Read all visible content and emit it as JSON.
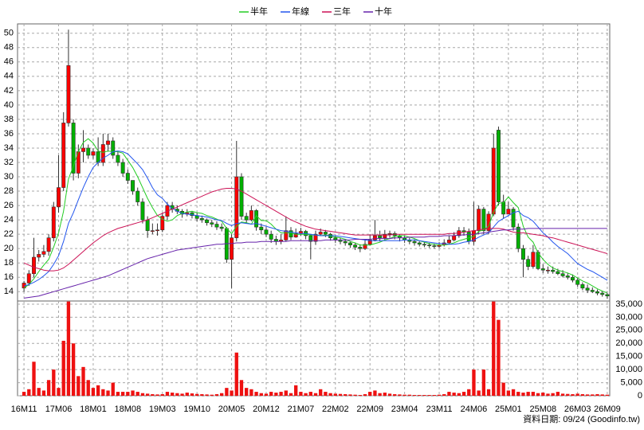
{
  "chart_data": {
    "type": "candlestick",
    "legend": "top",
    "grid": true,
    "up_color": "#ff0000",
    "down_color": "#00b000",
    "source_note": "資料日期: 09/24  (Goodinfo.tw)",
    "categories": [
      "16M11",
      null,
      null,
      null,
      null,
      null,
      null,
      "17M06",
      null,
      null,
      null,
      null,
      null,
      null,
      "18M01",
      null,
      null,
      null,
      null,
      null,
      null,
      "18M08",
      null,
      null,
      null,
      null,
      null,
      null,
      "19M03",
      null,
      null,
      null,
      null,
      null,
      null,
      "19M10",
      null,
      null,
      null,
      null,
      null,
      null,
      "20M05",
      null,
      null,
      null,
      null,
      null,
      null,
      "20M12",
      null,
      null,
      null,
      null,
      null,
      null,
      "21M07",
      null,
      null,
      null,
      null,
      null,
      null,
      "22M02",
      null,
      null,
      null,
      null,
      null,
      null,
      "22M09",
      null,
      null,
      null,
      null,
      null,
      null,
      "23M04",
      null,
      null,
      null,
      null,
      null,
      null,
      "23M11",
      null,
      null,
      null,
      null,
      null,
      null,
      "24M06",
      null,
      null,
      null,
      null,
      null,
      null,
      "25M01",
      null,
      null,
      null,
      null,
      null,
      null,
      "25M08",
      null,
      null,
      null,
      null,
      null,
      null,
      "26M03",
      null,
      null,
      null,
      null,
      null,
      "26M09"
    ],
    "open": [
      14.5,
      15.2,
      16.5,
      18.8,
      19.2,
      19.6,
      21.5,
      25.8,
      28.5,
      37.5,
      37.5,
      30.5,
      33.5,
      34,
      33,
      33.5,
      32,
      34.5,
      35,
      33,
      32,
      30.5,
      29.5,
      28,
      26.5,
      24,
      22.5,
      22.5,
      22.6,
      24.5,
      26,
      25.5,
      25.2,
      24.8,
      25,
      24.6,
      24.2,
      24,
      23.6,
      23.4,
      23,
      22.8,
      18.5,
      21.5,
      30,
      24.5,
      24,
      25.3,
      23,
      22.6,
      22,
      21.3,
      21,
      21.2,
      22.5,
      21.6,
      22.1,
      22.4,
      21.8,
      21,
      22,
      22.3,
      22,
      21.5,
      21.2,
      21,
      20.8,
      20.5,
      20.2,
      20,
      20.6,
      21.2,
      21.8,
      21.5,
      22,
      22.1,
      21.8,
      21.5,
      21.2,
      21,
      20.8,
      20.6,
      20.5,
      20.4,
      20.3,
      20.5,
      20.8,
      21.2,
      21.8,
      22.5,
      22.3,
      21,
      22.5,
      25.5,
      22.5,
      24.8,
      36.5,
      26.5,
      24.8,
      25.5,
      23,
      20,
      18.5,
      17.5,
      19.5,
      17.2,
      17,
      17,
      16.8,
      16.5,
      16.2,
      16,
      15.6,
      15,
      14.5,
      14.2,
      14,
      13.8,
      13.6
    ],
    "high": [
      15.5,
      17,
      21.5,
      19.8,
      20.5,
      22,
      26.5,
      33,
      39,
      50.5,
      38,
      34.5,
      36.5,
      34.5,
      34,
      35.5,
      36,
      36,
      35.5,
      33.5,
      32.5,
      31,
      29.5,
      28.5,
      27,
      24.5,
      23.5,
      23.5,
      25,
      26.5,
      26.5,
      26,
      25.5,
      25.5,
      25.2,
      25,
      24.6,
      24.2,
      24,
      23.8,
      23.5,
      23,
      22,
      35,
      30.5,
      25,
      26,
      25.5,
      23.5,
      23,
      22.5,
      21.8,
      22,
      24.5,
      23,
      22.8,
      22.9,
      22.6,
      22,
      22.5,
      22.8,
      22.6,
      22.2,
      21.8,
      21.5,
      21.3,
      21,
      20.8,
      20.6,
      21.2,
      22,
      24,
      22.5,
      22.6,
      22.5,
      22.4,
      22,
      21.8,
      21.5,
      21.3,
      21,
      20.9,
      20.8,
      20.7,
      20.9,
      21.3,
      21.8,
      22.3,
      23,
      23,
      22.8,
      26.5,
      26,
      25.8,
      25.2,
      36,
      37,
      27.5,
      26.5,
      25.8,
      23.5,
      20.5,
      19,
      20.5,
      19.8,
      17.8,
      17.5,
      17.5,
      17.2,
      17,
      16.6,
      16.4,
      15.9,
      15.3,
      15,
      14.6,
      14.3,
      14,
      13.8
    ],
    "low": [
      14,
      14.8,
      16,
      18.2,
      18.8,
      19,
      21,
      25,
      28,
      37,
      29.5,
      29.8,
      32,
      32.5,
      32.5,
      31.5,
      31.5,
      33.5,
      32.5,
      31.5,
      30,
      29,
      27.5,
      26,
      23.5,
      21.5,
      22,
      21.8,
      22.3,
      24,
      25,
      24.8,
      24.3,
      24.5,
      24.2,
      23.8,
      23.6,
      23.2,
      23,
      22.6,
      22.4,
      18,
      14.5,
      21,
      24,
      23.5,
      23.8,
      22.5,
      22,
      21.6,
      20.8,
      20.5,
      20.6,
      21,
      21.2,
      21.5,
      21.8,
      21.3,
      18.5,
      20.5,
      21.8,
      21.6,
      21.1,
      20.8,
      20.6,
      20.4,
      20.1,
      19.8,
      19.5,
      19.8,
      20.5,
      21,
      21,
      21.2,
      21.5,
      21.3,
      21,
      20.8,
      20.6,
      20.4,
      20.3,
      20.2,
      20.1,
      20,
      20.1,
      20.3,
      20.6,
      21,
      21.5,
      21.8,
      20.6,
      20.5,
      22,
      22,
      22,
      24.5,
      26,
      24.2,
      24.8,
      22.5,
      19.5,
      16,
      17,
      17.2,
      17,
      16.6,
      16.5,
      16.5,
      16.3,
      16,
      15.7,
      15.3,
      14.7,
      14.2,
      13.8,
      13.8,
      13.5,
      13.3,
      13
    ],
    "close": [
      15.2,
      16.5,
      18.8,
      19.2,
      19.6,
      21.5,
      25.8,
      28.5,
      37.5,
      45.5,
      30.5,
      33.5,
      34,
      33,
      33.5,
      32,
      34.5,
      35,
      33,
      32,
      30.5,
      29.5,
      28,
      26.5,
      24,
      22.5,
      22.5,
      22.6,
      24.5,
      26,
      25.5,
      25.2,
      24.8,
      25,
      24.6,
      24.2,
      24,
      23.6,
      23.4,
      23,
      22.8,
      18.5,
      21.5,
      30,
      24.5,
      24,
      25.3,
      23,
      22.6,
      22,
      21.3,
      21,
      21.2,
      22.5,
      21.6,
      22.1,
      22.4,
      21.8,
      21,
      22,
      22.3,
      22,
      21.5,
      21.2,
      21,
      20.8,
      20.5,
      20.2,
      20,
      20.6,
      21.2,
      21.8,
      21.5,
      22,
      22.1,
      21.8,
      21.5,
      21.2,
      21,
      20.8,
      20.6,
      20.5,
      20.4,
      20.3,
      20.5,
      20.8,
      21.2,
      21.8,
      22.5,
      22.3,
      21,
      22.5,
      25.5,
      22.5,
      24.8,
      34,
      26.5,
      24.8,
      25.5,
      23,
      20,
      18.5,
      17.5,
      19.5,
      17.2,
      17,
      17,
      16.8,
      16.5,
      16.2,
      16,
      15.6,
      15,
      14.5,
      14.2,
      14,
      13.8,
      13.6,
      13.4
    ],
    "series": [
      {
        "name": "半年",
        "color": "#22cc22",
        "values": [
          14.5,
          15,
          15.8,
          16.8,
          17.7,
          18.5,
          20.2,
          22.2,
          25.2,
          29.7,
          31.5,
          33.5,
          34.8,
          35.3,
          34.7,
          33.6,
          33.4,
          33.6,
          33.5,
          33.5,
          33.3,
          32.3,
          31.3,
          30,
          28.5,
          27,
          25.7,
          24.6,
          24.1,
          23.8,
          24,
          24.6,
          24.9,
          25.1,
          25.2,
          25,
          24.9,
          24.6,
          24.4,
          24.1,
          23.8,
          22.8,
          22.1,
          23.1,
          23.7,
          23.6,
          23.4,
          24.6,
          23.9,
          23.9,
          23.4,
          22.7,
          22.2,
          22.2,
          22.2,
          22,
          22,
          22,
          21.9,
          21.9,
          21.8,
          21.9,
          21.8,
          21.6,
          21.5,
          21.3,
          21,
          20.8,
          20.5,
          20.5,
          20.5,
          20.7,
          20.9,
          21.2,
          21.4,
          21.7,
          21.8,
          21.8,
          21.6,
          21.4,
          21.1,
          20.9,
          20.7,
          20.6,
          20.5,
          20.5,
          20.6,
          20.8,
          21.1,
          21.3,
          21.5,
          21.7,
          22.4,
          22.6,
          23.1,
          25.1,
          26.3,
          26.4,
          27.2,
          26.4,
          25.7,
          23.1,
          21.6,
          20.9,
          19.4,
          18.5,
          17.8,
          17.3,
          17,
          16.8,
          16.6,
          16.3,
          15.9,
          15.5,
          15.2,
          14.8,
          14.4,
          14.1,
          13.8
        ]
      },
      {
        "name": "年線",
        "color": "#2255ee",
        "values": [
          14.8,
          15,
          15.3,
          15.7,
          16.2,
          16.8,
          17.8,
          19,
          21,
          23.5,
          25,
          26.8,
          28.5,
          30,
          31.3,
          32,
          32.6,
          33,
          33.5,
          33.6,
          33.5,
          33.2,
          32.5,
          31.8,
          31,
          29.8,
          28.5,
          27.5,
          27,
          26.2,
          25.6,
          25.2,
          24.9,
          24.8,
          24.7,
          24.6,
          24.5,
          24.4,
          24.2,
          24,
          23.9,
          23.5,
          23.2,
          23.5,
          23.6,
          23.5,
          23.4,
          23.5,
          23.3,
          23.1,
          22.9,
          22.7,
          22.5,
          22.4,
          22.3,
          22.2,
          22.1,
          22.1,
          22,
          21.9,
          21.8,
          21.8,
          21.8,
          21.8,
          21.7,
          21.6,
          21.5,
          21.4,
          21.3,
          21.2,
          21.1,
          21.1,
          21.1,
          21.1,
          21.1,
          21.1,
          21.1,
          21.2,
          21.2,
          21.2,
          21.1,
          21,
          20.9,
          20.8,
          20.7,
          20.7,
          20.6,
          20.6,
          20.7,
          20.9,
          21,
          21.2,
          21.6,
          21.9,
          22.2,
          23,
          23.8,
          24.2,
          24.6,
          25,
          25.2,
          24.6,
          24.3,
          23.8,
          23,
          22.2,
          21.6,
          20.9,
          20.3,
          19.8,
          19.3,
          18.6,
          17.9,
          17.5,
          17.1,
          16.8,
          16.4,
          16,
          15.6
        ]
      },
      {
        "name": "三年",
        "color": "#cc1155",
        "values": [
          18,
          17.7,
          17.4,
          17.2,
          17,
          16.9,
          16.9,
          17,
          17.3,
          17.8,
          18.4,
          19,
          19.6,
          20.2,
          20.8,
          21.3,
          21.8,
          22.2,
          22.5,
          22.8,
          23,
          23.2,
          23.4,
          23.6,
          23.8,
          24,
          24.3,
          24.6,
          24.9,
          25.2,
          25.5,
          25.8,
          26.1,
          26.4,
          26.7,
          27,
          27.3,
          27.6,
          27.9,
          28.1,
          28.3,
          28.4,
          28.4,
          28.3,
          28,
          27.6,
          27.2,
          26.8,
          26.4,
          26,
          25.6,
          25.2,
          24.8,
          24.4,
          24,
          23.7,
          23.4,
          23.1,
          22.9,
          22.7,
          22.6,
          22.5,
          22.4,
          22.3,
          22.2,
          22.1,
          22,
          21.9,
          21.9,
          21.9,
          21.9,
          21.9,
          21.9,
          21.9,
          21.9,
          22,
          22,
          22,
          22,
          22,
          22,
          22,
          22,
          22,
          22,
          22,
          22.1,
          22.1,
          22.2,
          22.3,
          22.4,
          22.5,
          22.6,
          22.7,
          22.8,
          22.8,
          22.8,
          22.7,
          22.5,
          22.3,
          22.2,
          22.2,
          22.1,
          22,
          21.9,
          21.8,
          21.6,
          21.5,
          21.3,
          21.1,
          20.9,
          20.7,
          20.5,
          20.3,
          20.1,
          19.9,
          19.7,
          19.5,
          19.3
        ]
      },
      {
        "name": "十年",
        "color": "#6622aa",
        "values": [
          13.1,
          13.2,
          13.3,
          13.4,
          13.6,
          13.8,
          14,
          14.2,
          14.4,
          14.6,
          14.8,
          15,
          15.2,
          15.4,
          15.6,
          15.8,
          16,
          16.2,
          16.5,
          16.8,
          17.1,
          17.4,
          17.7,
          18,
          18.3,
          18.6,
          18.8,
          19,
          19.2,
          19.4,
          19.6,
          19.8,
          19.9,
          20,
          20.1,
          20.2,
          20.3,
          20.4,
          20.5,
          20.6,
          20.6,
          20.7,
          20.7,
          20.8,
          20.8,
          20.9,
          20.9,
          20.9,
          21,
          21,
          21,
          21,
          21,
          21,
          21.1,
          21.1,
          21.1,
          21.1,
          21.1,
          21.1,
          21.1,
          21.2,
          21.2,
          21.2,
          21.2,
          21.2,
          21.2,
          21.3,
          21.3,
          21.3,
          21.3,
          21.4,
          21.4,
          21.4,
          21.4,
          21.5,
          21.5,
          21.5,
          21.6,
          21.6,
          21.6,
          21.6,
          21.7,
          21.7,
          21.7,
          21.8,
          21.8,
          21.8,
          21.9,
          21.9,
          22,
          22,
          22.1,
          22.2,
          22.3,
          22.4,
          22.5,
          22.6,
          22.6,
          22.7,
          22.7,
          22.7,
          22.8,
          22.8,
          22.8,
          22.8,
          22.8,
          22.8,
          22.8,
          22.8,
          22.8,
          22.8,
          22.8,
          22.8,
          22.8,
          22.8,
          22.8,
          22.8,
          22.8
        ]
      }
    ],
    "ylim": [
      12.7,
      51.3
    ],
    "yticks": [
      14,
      16,
      18,
      20,
      22,
      24,
      26,
      28,
      30,
      32,
      34,
      36,
      38,
      40,
      42,
      44,
      46,
      48,
      50
    ],
    "volume": {
      "color": "#ee1111",
      "values": [
        1500,
        2500,
        13000,
        3000,
        2000,
        6000,
        10000,
        3000,
        21000,
        36000,
        20000,
        7500,
        11000,
        6000,
        3000,
        4000,
        2500,
        2000,
        5000,
        1500,
        1500,
        1500,
        2000,
        1500,
        1000,
        800,
        600,
        500,
        600,
        1500,
        1200,
        1000,
        800,
        1200,
        900,
        700,
        600,
        500,
        400,
        600,
        1000,
        3000,
        2000,
        16500,
        6000,
        3000,
        2500,
        1500,
        1000,
        800,
        1500,
        1200,
        1500,
        2000,
        1000,
        4000,
        1500,
        1000,
        1500,
        1000,
        2500,
        1500,
        1000,
        800,
        700,
        600,
        500,
        400,
        300,
        600,
        1500,
        2000,
        1000,
        1200,
        800,
        600,
        500,
        400,
        400,
        300,
        300,
        300,
        300,
        300,
        400,
        600,
        1500,
        1200,
        1000,
        1500,
        2500,
        10000,
        2000,
        10000,
        2500,
        36000,
        29000,
        5000,
        2000,
        2500,
        1500,
        1200,
        1500,
        1500,
        1000,
        1200,
        800,
        1000,
        1500,
        800,
        700,
        600,
        800,
        600,
        500,
        500,
        600,
        500,
        400
      ],
      "ylim": [
        0,
        36200
      ],
      "yticks": [
        0,
        {
          "value": 5000,
          "label": "5,000"
        },
        {
          "value": 10000,
          "label": "10,000"
        },
        {
          "value": 15000,
          "label": "15,000"
        },
        {
          "value": 20000,
          "label": "20,000"
        },
        {
          "value": 25000,
          "label": "25,000"
        },
        {
          "value": 30000,
          "label": "30,000"
        },
        {
          "value": 35000,
          "label": "35,000"
        }
      ]
    }
  }
}
